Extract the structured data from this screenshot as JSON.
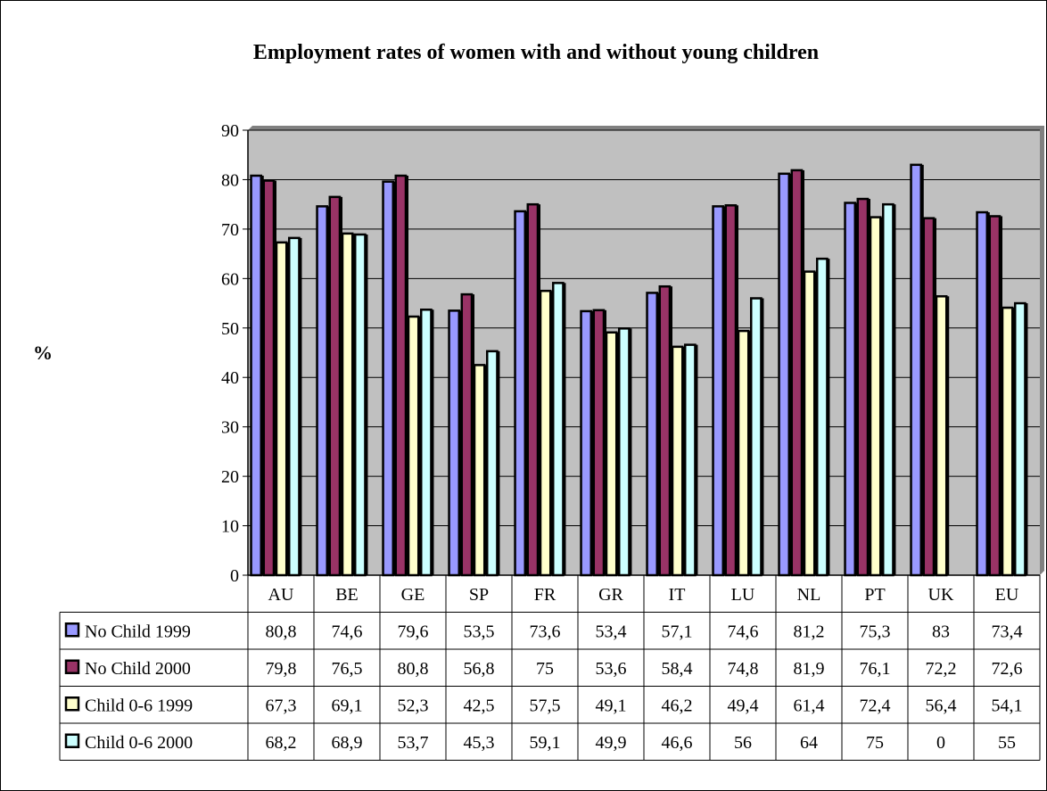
{
  "chart_data": {
    "type": "bar",
    "title": "Employment rates of women with and without young children",
    "ylabel": "%",
    "xlabel": "",
    "ylim": [
      0,
      90
    ],
    "yticks": [
      0,
      10,
      20,
      30,
      40,
      50,
      60,
      70,
      80,
      90
    ],
    "grid": true,
    "legend": "table-left",
    "categories": [
      "AU",
      "BE",
      "GE",
      "SP",
      "FR",
      "GR",
      "IT",
      "LU",
      "NL",
      "PT",
      "UK",
      "EU"
    ],
    "series": [
      {
        "name": "No Child 1999",
        "color": "#9999ff",
        "values": [
          80.8,
          74.6,
          79.6,
          53.5,
          73.6,
          53.4,
          57.1,
          74.6,
          81.2,
          75.3,
          83,
          73.4
        ],
        "labels": [
          "80,8",
          "74,6",
          "79,6",
          "53,5",
          "73,6",
          "53,4",
          "57,1",
          "74,6",
          "81,2",
          "75,3",
          "83",
          "73,4"
        ]
      },
      {
        "name": "No Child 2000",
        "color": "#993366",
        "values": [
          79.8,
          76.5,
          80.8,
          56.8,
          75,
          53.6,
          58.4,
          74.8,
          81.9,
          76.1,
          72.2,
          72.6
        ],
        "labels": [
          "79,8",
          "76,5",
          "80,8",
          "56,8",
          "75",
          "53,6",
          "58,4",
          "74,8",
          "81,9",
          "76,1",
          "72,2",
          "72,6"
        ]
      },
      {
        "name": "Child 0-6 1999",
        "color": "#ffffcc",
        "values": [
          67.3,
          69.1,
          52.3,
          42.5,
          57.5,
          49.1,
          46.2,
          49.4,
          61.4,
          72.4,
          56.4,
          54.1
        ],
        "labels": [
          "67,3",
          "69,1",
          "52,3",
          "42,5",
          "57,5",
          "49,1",
          "46,2",
          "49,4",
          "61,4",
          "72,4",
          "56,4",
          "54,1"
        ]
      },
      {
        "name": "Child 0-6 2000",
        "color": "#ccffff",
        "values": [
          68.2,
          68.9,
          53.7,
          45.3,
          59.1,
          49.9,
          46.6,
          56,
          64,
          75,
          0,
          55
        ],
        "labels": [
          "68,2",
          "68,9",
          "53,7",
          "45,3",
          "59,1",
          "49,9",
          "46,6",
          "56",
          "64",
          "75",
          "0",
          "55"
        ]
      }
    ],
    "plot_background": "#c0c0c0"
  }
}
